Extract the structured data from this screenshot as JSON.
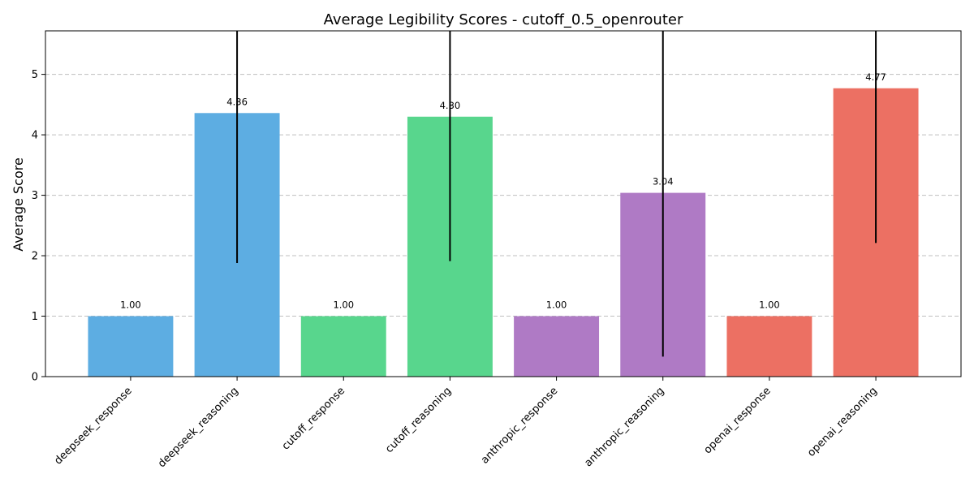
{
  "chart_data": {
    "type": "bar",
    "title": "Average Legibility Scores - cutoff_0.5_openrouter",
    "xlabel": "",
    "ylabel": "Average Score",
    "ylim": [
      0,
      5.72
    ],
    "yticks": [
      0,
      1,
      2,
      3,
      4,
      5
    ],
    "grid": "y-dashed",
    "categories": [
      "deepseek_response",
      "deepseek_reasoning",
      "cutoff_response",
      "cutoff_reasoning",
      "anthropic_response",
      "anthropic_reasoning",
      "openai_response",
      "openai_reasoning"
    ],
    "values": [
      1.0,
      4.36,
      1.0,
      4.3,
      1.0,
      3.04,
      1.0,
      4.77
    ],
    "value_labels": [
      "1.00",
      "4.36",
      "1.00",
      "4.30",
      "1.00",
      "3.04",
      "1.00",
      "4.77"
    ],
    "error": [
      0,
      2.48,
      0,
      2.39,
      0,
      2.71,
      0,
      2.56
    ],
    "colors": [
      "#5dade2",
      "#5dade2",
      "#58d68d",
      "#58d68d",
      "#af7ac5",
      "#af7ac5",
      "#ec7063",
      "#ec7063"
    ]
  }
}
